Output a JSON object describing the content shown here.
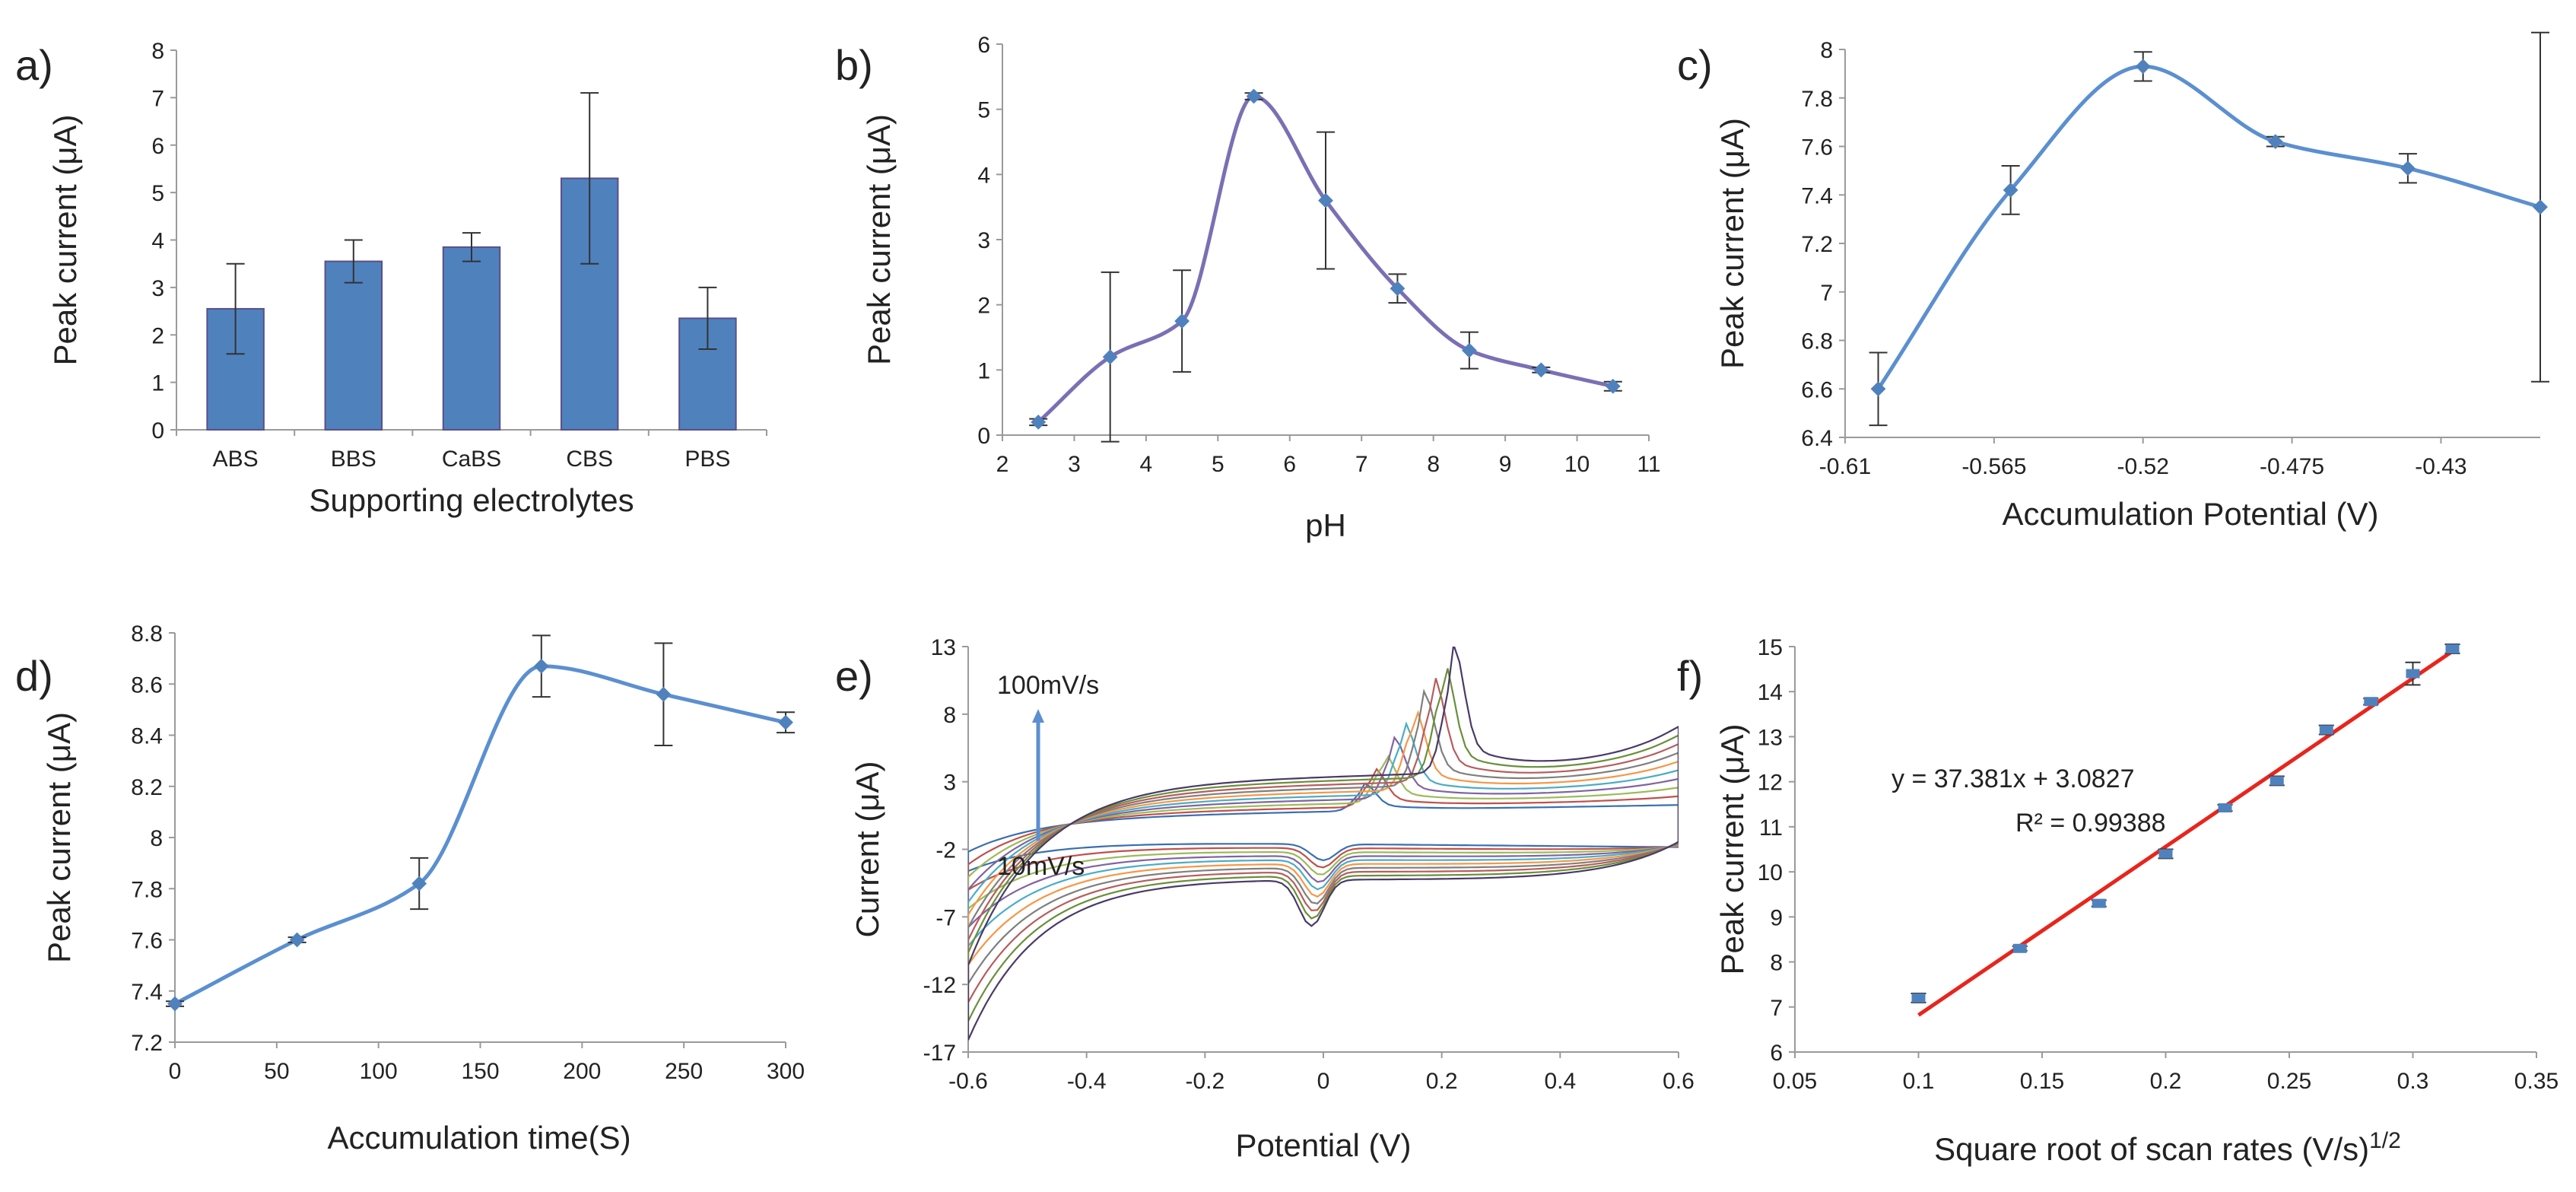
{
  "chart_data": [
    {
      "id": "a",
      "panel_label": "a)",
      "type": "bar",
      "title": "",
      "xlabel": "Supporting  electrolytes",
      "ylabel": "Peak current (μA)",
      "categories": [
        "ABS",
        "BBS",
        "CaBS",
        "CBS",
        "PBS"
      ],
      "values": [
        2.55,
        3.55,
        3.85,
        5.3,
        2.35
      ],
      "errors": [
        0.95,
        0.45,
        0.3,
        1.8,
        0.65
      ],
      "ylim": [
        0,
        8
      ],
      "yticks": [
        0,
        1,
        2,
        3,
        4,
        5,
        6,
        7,
        8
      ],
      "grid": false
    },
    {
      "id": "b",
      "panel_label": "b)",
      "type": "line",
      "xlabel": "pH",
      "ylabel": "Peak current (μA)",
      "x": [
        2.5,
        3.5,
        4.5,
        5.5,
        6.5,
        7.5,
        8.5,
        9.5,
        10.5
      ],
      "y": [
        0.2,
        1.2,
        1.75,
        5.2,
        3.6,
        2.25,
        1.3,
        1.0,
        0.75
      ],
      "errors": [
        0.05,
        1.3,
        0.78,
        0.05,
        1.05,
        0.22,
        0.28,
        0.04,
        0.07
      ],
      "xlim": [
        2,
        11
      ],
      "ylim": [
        0,
        6
      ],
      "xticks": [
        2,
        3,
        4,
        5,
        6,
        7,
        8,
        9,
        10,
        11
      ],
      "yticks": [
        0,
        1,
        2,
        3,
        4,
        5,
        6
      ],
      "grid": false
    },
    {
      "id": "c",
      "panel_label": "c)",
      "type": "line",
      "xlabel": "Accumulation Potential (V)",
      "ylabel": "Peak current (μA)",
      "x": [
        -0.6,
        -0.56,
        -0.52,
        -0.48,
        -0.44,
        -0.4
      ],
      "y": [
        6.6,
        7.42,
        7.93,
        7.62,
        7.51,
        7.35
      ],
      "errors": [
        0.15,
        0.1,
        0.06,
        0.02,
        0.06,
        0.72
      ],
      "xlim": [
        -0.61,
        -0.4
      ],
      "ylim": [
        6.4,
        8
      ],
      "xticks": [
        -0.61,
        -0.565,
        -0.52,
        -0.475,
        -0.43
      ],
      "xticklabels": [
        "-0.61",
        "-0.565",
        "-0.52",
        "-0.475",
        "-0.43"
      ],
      "yticks": [
        6.4,
        6.6,
        6.8,
        7,
        7.2,
        7.4,
        7.6,
        7.8,
        8
      ],
      "yticklabels": [
        "6.4",
        "6.6",
        "6.8",
        "7",
        "7.2",
        "7.4",
        "7.6",
        "7.8",
        "8"
      ],
      "grid": false
    },
    {
      "id": "d",
      "panel_label": "d)",
      "type": "line",
      "xlabel": "Accumulation time(S)",
      "ylabel": "Peak current (μA)",
      "x": [
        0,
        60,
        120,
        180,
        240,
        300
      ],
      "y": [
        7.35,
        7.6,
        7.82,
        8.67,
        8.56,
        8.45
      ],
      "errors": [
        0.01,
        0.01,
        0.1,
        0.12,
        0.2,
        0.04
      ],
      "xlim": [
        0,
        300
      ],
      "ylim": [
        7.2,
        8.8
      ],
      "xticks": [
        0,
        50,
        100,
        150,
        200,
        250,
        300
      ],
      "yticks": [
        7.2,
        7.4,
        7.6,
        7.8,
        8,
        8.2,
        8.4,
        8.6,
        8.8
      ],
      "yticklabels": [
        "7.2",
        "7.4",
        "7.6",
        "7.8",
        "8",
        "8.2",
        "8.4",
        "8.6",
        "8.8"
      ],
      "grid": false
    },
    {
      "id": "e",
      "panel_label": "e)",
      "type": "line",
      "xlabel": "Potential (V)",
      "ylabel": "Current (μA)",
      "xlim": [
        -0.6,
        0.6
      ],
      "ylim": [
        -17,
        13
      ],
      "xticks": [
        -0.6,
        -0.4,
        -0.2,
        0,
        0.2,
        0.4,
        0.6
      ],
      "xticklabels": [
        "-0.6",
        "-0.4",
        "-0.2",
        "0",
        "0.2",
        "0.4",
        "0.6"
      ],
      "yticks": [
        -17,
        -12,
        -7,
        -2,
        3,
        8,
        13
      ],
      "scan_rates_mV_s": [
        10,
        20,
        30,
        40,
        50,
        60,
        70,
        80,
        90,
        100
      ],
      "series_colors": [
        "#3a6fb0",
        "#c0504d",
        "#9bbb59",
        "#8064a2",
        "#4bacc6",
        "#f79646",
        "#7f7f7f",
        "#b65d5d",
        "#6a8f3a",
        "#4a3a66"
      ],
      "annotation_top": "100mV/s",
      "annotation_bottom": "10mV/s",
      "grid": false
    },
    {
      "id": "f",
      "panel_label": "f)",
      "type": "scatter",
      "xlabel": "Square root of scan rates (V/s)",
      "xlabel_sup": "1/2",
      "ylabel": "Peak current (μA)",
      "x": [
        0.1,
        0.141,
        0.173,
        0.2,
        0.224,
        0.245,
        0.265,
        0.283,
        0.3,
        0.316
      ],
      "y": [
        7.2,
        8.3,
        9.3,
        10.4,
        11.42,
        12.02,
        13.15,
        13.78,
        14.4,
        14.95
      ],
      "errors": [
        0.1,
        0.05,
        0.07,
        0.1,
        0.07,
        0.1,
        0.1,
        0.07,
        0.25,
        0.1
      ],
      "fit": {
        "slope": 37.381,
        "intercept": 3.0827,
        "x_range": [
          0.1,
          0.316
        ]
      },
      "equation": "y = 37.381x + 3.0827",
      "r2": "R² = 0.99388",
      "xlim": [
        0.05,
        0.35
      ],
      "ylim": [
        6,
        15
      ],
      "xticks": [
        0.05,
        0.1,
        0.15,
        0.2,
        0.25,
        0.3,
        0.35
      ],
      "xticklabels": [
        "0.05",
        "0.1",
        "0.15",
        "0.2",
        "0.25",
        "0.3",
        "0.35"
      ],
      "yticks": [
        6,
        7,
        8,
        9,
        10,
        11,
        12,
        13,
        14,
        15
      ],
      "grid": false
    }
  ],
  "colors": {
    "bar_fill": "#4f81bd",
    "bar_stroke": "#5b4f8a",
    "line": "#5b8fd0",
    "line_b": "#7b6fb4",
    "marker": "#4f81bd",
    "fit_line": "#e8251c",
    "axis": "#9a9a9a",
    "errorbar": "#333333"
  }
}
